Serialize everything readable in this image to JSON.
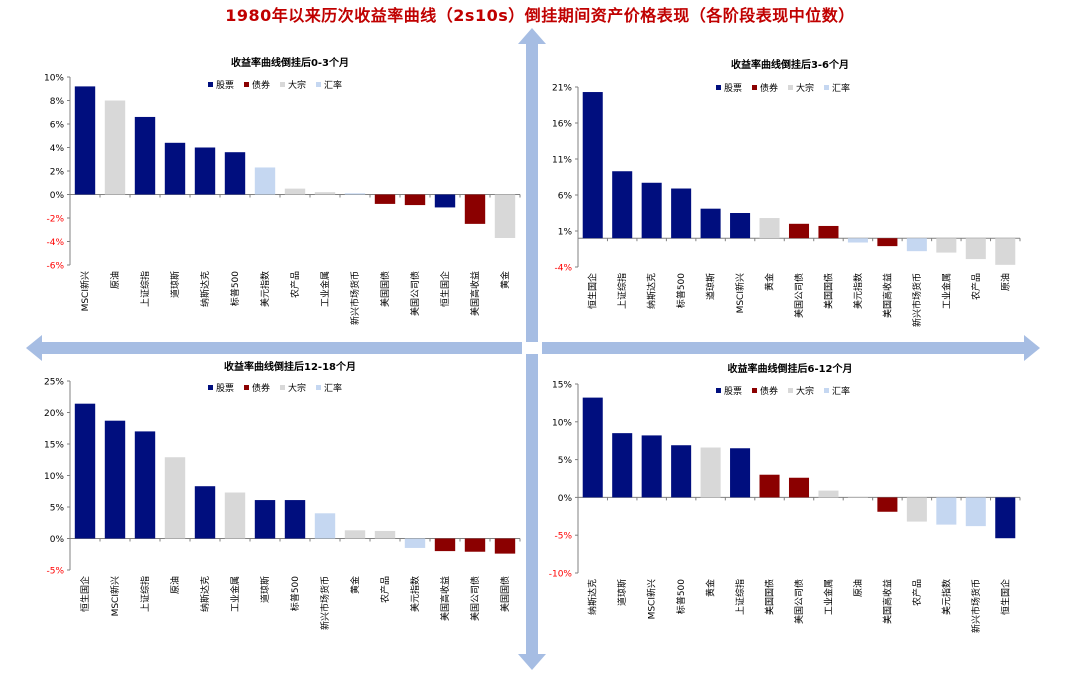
{
  "page": {
    "title": "1980年以来历次收益率曲线（2s10s）倒挂期间资产价格表现（各阶段表现中位数）"
  },
  "legend": {
    "stocks": "股票",
    "bonds": "债券",
    "commodities": "大宗",
    "fx": "汇率"
  },
  "colors": {
    "stocks": "#000e7e",
    "bonds": "#8b0000",
    "commodities": "#d8d8d8",
    "fx": "#c5d7f1",
    "axis_labels": "#000000",
    "negative_ticks": "#ff0000",
    "title": "#c00000",
    "arrow": "#a6bde3"
  },
  "chart_data": [
    {
      "type": "bar",
      "title": "收益率曲线倒挂后0-3个月",
      "ylim": [
        -6,
        10
      ],
      "yticks": [
        10,
        8,
        6,
        4,
        2,
        0,
        -2,
        -4,
        -6
      ],
      "ytick_labels": [
        "10%",
        "8%",
        "6%",
        "4%",
        "2%",
        "0%",
        "-2%",
        "-4%",
        "-6%"
      ],
      "categories": [
        "MSCI新兴",
        "原油",
        "上证综指",
        "道琼斯",
        "纳斯达克",
        "标普500",
        "美元指数",
        "农产品",
        "工业金属",
        "新兴市场货币",
        "美国国债",
        "美国公司债",
        "恒生国企",
        "美国高收益",
        "黄金"
      ],
      "values": [
        9.2,
        8.0,
        6.6,
        4.4,
        4.0,
        3.6,
        2.3,
        0.5,
        0.2,
        0.1,
        -0.8,
        -0.9,
        -1.1,
        -2.5,
        -3.7
      ],
      "asset_class": [
        "stocks",
        "commodities",
        "stocks",
        "stocks",
        "stocks",
        "stocks",
        "fx",
        "commodities",
        "commodities",
        "fx",
        "bonds",
        "bonds",
        "stocks",
        "bonds",
        "commodities"
      ]
    },
    {
      "type": "bar",
      "title": "收益率曲线倒挂后3-6个月",
      "ylim": [
        -4,
        21
      ],
      "yticks": [
        21,
        16,
        11,
        6,
        1,
        -4
      ],
      "ytick_labels": [
        "21%",
        "16%",
        "11%",
        "6%",
        "1%",
        "-4%"
      ],
      "categories": [
        "恒生国企",
        "上证综指",
        "纳斯达克",
        "标普500",
        "道琼斯",
        "MSCI新兴",
        "黄金",
        "美国公司债",
        "美国国债",
        "美元指数",
        "美国高收益",
        "新兴市场货币",
        "工业金属",
        "农产品",
        "原油"
      ],
      "values": [
        20.3,
        9.3,
        7.7,
        6.9,
        4.1,
        3.5,
        2.8,
        2.0,
        1.7,
        -0.6,
        -1.1,
        -1.8,
        -2.0,
        -2.9,
        -3.7
      ],
      "asset_class": [
        "stocks",
        "stocks",
        "stocks",
        "stocks",
        "stocks",
        "stocks",
        "commodities",
        "bonds",
        "bonds",
        "fx",
        "bonds",
        "fx",
        "commodities",
        "commodities",
        "commodities"
      ]
    },
    {
      "type": "bar",
      "title": "收益率曲线倒挂后12-18个月",
      "ylim": [
        -5,
        25
      ],
      "yticks": [
        25,
        20,
        15,
        10,
        5,
        0,
        -5
      ],
      "ytick_labels": [
        "25%",
        "20%",
        "15%",
        "10%",
        "5%",
        "0%",
        "-5%"
      ],
      "categories": [
        "恒生国企",
        "MSCI新兴",
        "上证综指",
        "原油",
        "纳斯达克",
        "工业金属",
        "道琼斯",
        "标普500",
        "新兴市场货币",
        "黄金",
        "农产品",
        "美元指数",
        "美国高收益",
        "美国公司债",
        "美国国债"
      ],
      "values": [
        21.4,
        18.7,
        17.0,
        12.9,
        8.3,
        7.3,
        6.1,
        6.1,
        4.0,
        1.3,
        1.2,
        -1.5,
        -2.0,
        -2.1,
        -2.4
      ],
      "asset_class": [
        "stocks",
        "stocks",
        "stocks",
        "commodities",
        "stocks",
        "commodities",
        "stocks",
        "stocks",
        "fx",
        "commodities",
        "commodities",
        "fx",
        "bonds",
        "bonds",
        "bonds"
      ]
    },
    {
      "type": "bar",
      "title": "收益率曲线倒挂后6-12个月",
      "ylim": [
        -10,
        15
      ],
      "yticks": [
        15,
        10,
        5,
        0,
        -5,
        -10
      ],
      "ytick_labels": [
        "15%",
        "10%",
        "5%",
        "0%",
        "-5%",
        "-10%"
      ],
      "categories": [
        "纳斯达克",
        "道琼斯",
        "MSCI新兴",
        "标普500",
        "黄金",
        "上证综指",
        "美国国债",
        "美国公司债",
        "工业金属",
        "原油",
        "美国高收益",
        "农产品",
        "美元指数",
        "新兴市场货币",
        "恒生国企"
      ],
      "values": [
        13.2,
        8.5,
        8.2,
        6.9,
        6.6,
        6.5,
        3.0,
        2.6,
        0.9,
        0.1,
        -1.9,
        -3.2,
        -3.6,
        -3.8,
        -5.4
      ],
      "asset_class": [
        "stocks",
        "stocks",
        "stocks",
        "stocks",
        "commodities",
        "stocks",
        "bonds",
        "bonds",
        "commodities",
        "commodities",
        "bonds",
        "commodities",
        "fx",
        "fx",
        "stocks"
      ]
    }
  ]
}
